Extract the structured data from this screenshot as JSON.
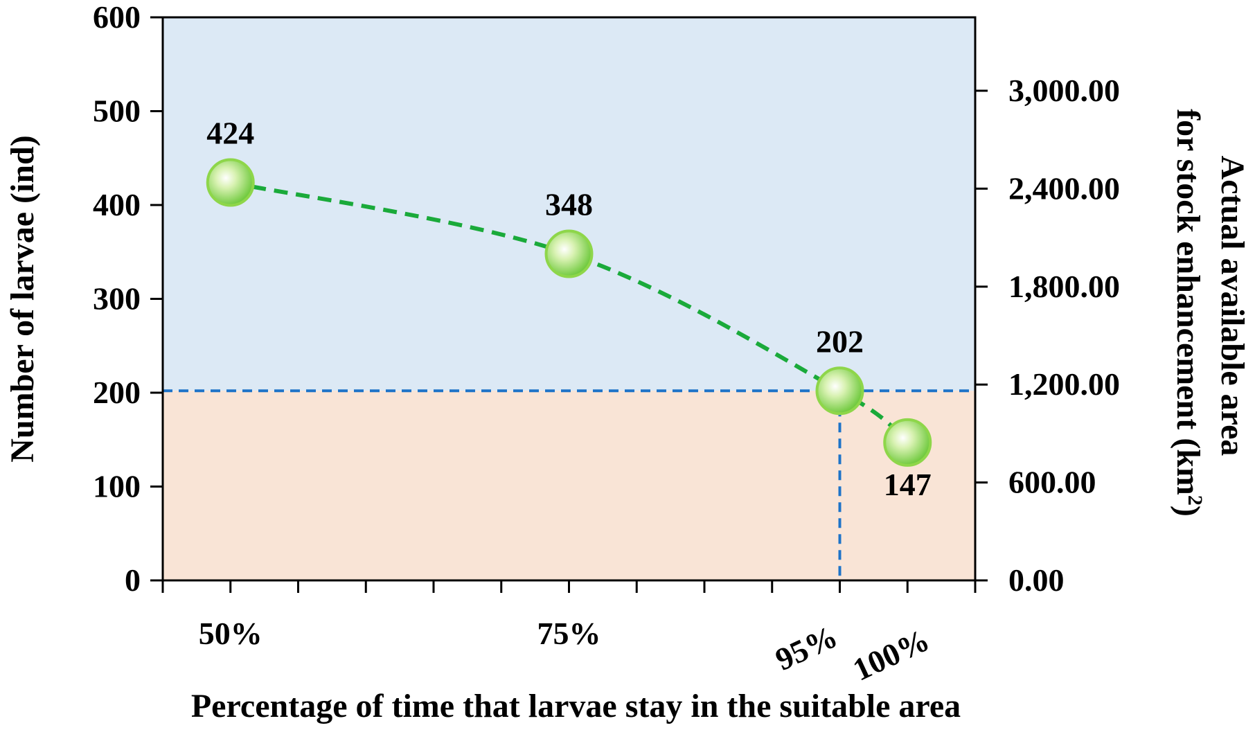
{
  "chart_data": {
    "type": "line",
    "title": "",
    "xlabel": "Percentage of time that larvae stay in the suitable area",
    "ylabel": "Number of larvae (ind)",
    "y2label_line1": "Actual available area",
    "y2label_line2_prefix": "for stock enhancement (km",
    "y2label_sup": "2",
    "y2label_suffix": ")",
    "x_tick_labels": [
      {
        "label": "50%",
        "x": 50
      },
      {
        "label": "75%",
        "x": 75
      },
      {
        "label": "95%",
        "x": 95
      },
      {
        "label": "100%",
        "x": 100
      }
    ],
    "xlim": [
      45,
      105
    ],
    "ylim": [
      0,
      600
    ],
    "y_ticks": [
      0,
      100,
      200,
      300,
      400,
      500,
      600
    ],
    "y2lim": [
      0,
      3450
    ],
    "y2_ticks": [
      {
        "value": 0,
        "label": "0.00"
      },
      {
        "value": 600,
        "label": "600.00"
      },
      {
        "value": 1200,
        "label": "1,200.00"
      },
      {
        "value": 1800,
        "label": "1,800.00"
      },
      {
        "value": 2400,
        "label": "2,400.00"
      },
      {
        "value": 3000,
        "label": "3,000.00"
      }
    ],
    "series": [
      {
        "x": [
          50,
          75,
          95,
          100
        ],
        "values": [
          424,
          348,
          202,
          147
        ],
        "labels": [
          "424",
          "348",
          "202",
          "147"
        ],
        "color": "#1aaa3a",
        "marker_color": "#8ed64a",
        "line_style": "dashed"
      }
    ],
    "threshold": {
      "y": 202,
      "x": 95,
      "color": "#1e73c8"
    },
    "regions": {
      "above_color": "#dce9f5",
      "below_color": "#f9e4d6"
    },
    "grid": false,
    "legend": "none"
  }
}
